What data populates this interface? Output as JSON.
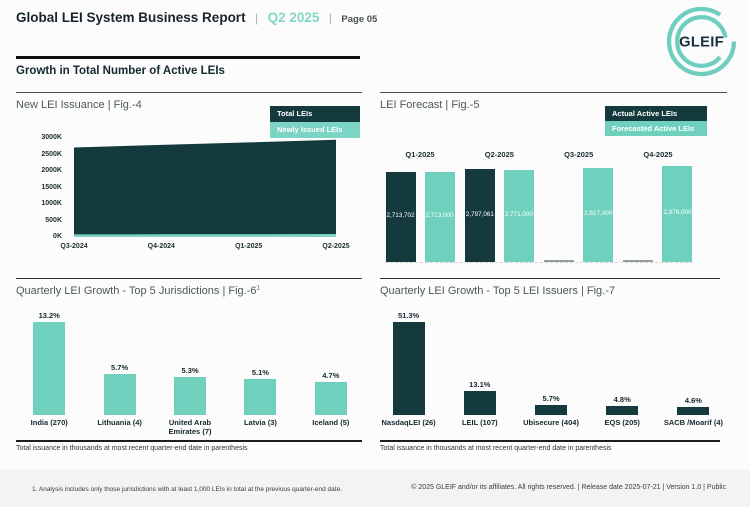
{
  "header": {
    "title": "Global LEI System Business Report",
    "sep": "|",
    "period": "Q2 2025",
    "page_label": "Page 05"
  },
  "logo": {
    "text": "GLEIF",
    "ring_color": "#6fcfbf",
    "text_color": "#13303d"
  },
  "section_title": "Growth in Total Number of Active LEIs",
  "chart_data": [
    {
      "type": "area",
      "title": "New LEI Issuance",
      "fig_label": "| Fig.-4",
      "x": [
        "Q3-2024",
        "Q4-2024",
        "Q1-2025",
        "Q2-2025"
      ],
      "series": [
        {
          "name": "Total LEIs",
          "color": "#143a3e",
          "values_k": [
            2713,
            2790,
            2868,
            2950
          ]
        },
        {
          "name": "Newly Issued LEIs",
          "color": "#7cd4c4",
          "values_k": [
            80,
            82,
            86,
            90
          ]
        }
      ],
      "yticks": [
        "3000K",
        "2500K",
        "2000K",
        "1500K",
        "1000K",
        "500K",
        "0K"
      ],
      "ylim_k": [
        0,
        3000
      ],
      "legend_position": "top-right",
      "grid": "off"
    },
    {
      "type": "bar",
      "title": "LEI Forecast",
      "fig_label": "| Fig.-5",
      "categories": [
        "Q1-2025",
        "Q2-2025",
        "Q3-2025",
        "Q4-2025"
      ],
      "series": [
        {
          "name": "Actual Active LEIs",
          "color": "#143a3e",
          "values": [
            2713702,
            2797061,
            null,
            null
          ],
          "labels": [
            "2,713,702",
            "2,797,061",
            "",
            ""
          ]
        },
        {
          "name": "Forecasted Active LEIs",
          "color": "#6fd0be",
          "values": [
            2713000,
            2771000,
            2817000,
            2878000
          ],
          "labels": [
            "2,713,000",
            "2,771,000",
            "2,817,000",
            "2,878,000"
          ]
        }
      ],
      "legend_position": "top-right",
      "grid": "off"
    },
    {
      "type": "bar",
      "title": "Quarterly LEI Growth - Top 5 Jurisdictions",
      "fig_label": "| Fig.-6",
      "fig_superscript": "1",
      "categories": [
        "India (270)",
        "Lithuania (4)",
        "United Arab Emirates (7)",
        "Latvia (3)",
        "Iceland (5)"
      ],
      "values_pct": [
        13.2,
        5.7,
        5.3,
        5.1,
        4.7
      ],
      "labels": [
        "13.2%",
        "5.7%",
        "5.3%",
        "5.1%",
        "4.7%"
      ],
      "bar_color": "#6fd0be",
      "caption": "Total issuance in thousands at most recent quarter-end date in parenthesis"
    },
    {
      "type": "bar",
      "title": "Quarterly LEI Growth - Top 5 LEI Issuers",
      "fig_label": "| Fig.-7",
      "categories": [
        "NasdaqLEI (26)",
        "LEIL (107)",
        "Ubisecure (404)",
        "EQS (205)",
        "SACB /Moarif (4)"
      ],
      "values_pct": [
        51.3,
        13.1,
        5.7,
        4.8,
        4.6
      ],
      "labels": [
        "51.3%",
        "13.1%",
        "5.7%",
        "4.8%",
        "4.6%"
      ],
      "bar_color": "#143a3e",
      "caption": "Total issuance in thousands at most recent quarter-end date in parenthesis"
    }
  ],
  "footer": {
    "footnote": "1. Analysis includes only those jurisdictions with at least 1,000 LEIs in total at the previous quarter-end date.",
    "copyright": "© 2025 GLEIF and/or its affiliates. All rights reserved.  | Release date 2025-07-21 | Version 1.0 | Public"
  },
  "colors": {
    "dark_petrol": "#143a3e",
    "teal": "#6fd0be",
    "light_teal": "#7cd4c4",
    "accent_text": "#82d6c5"
  }
}
